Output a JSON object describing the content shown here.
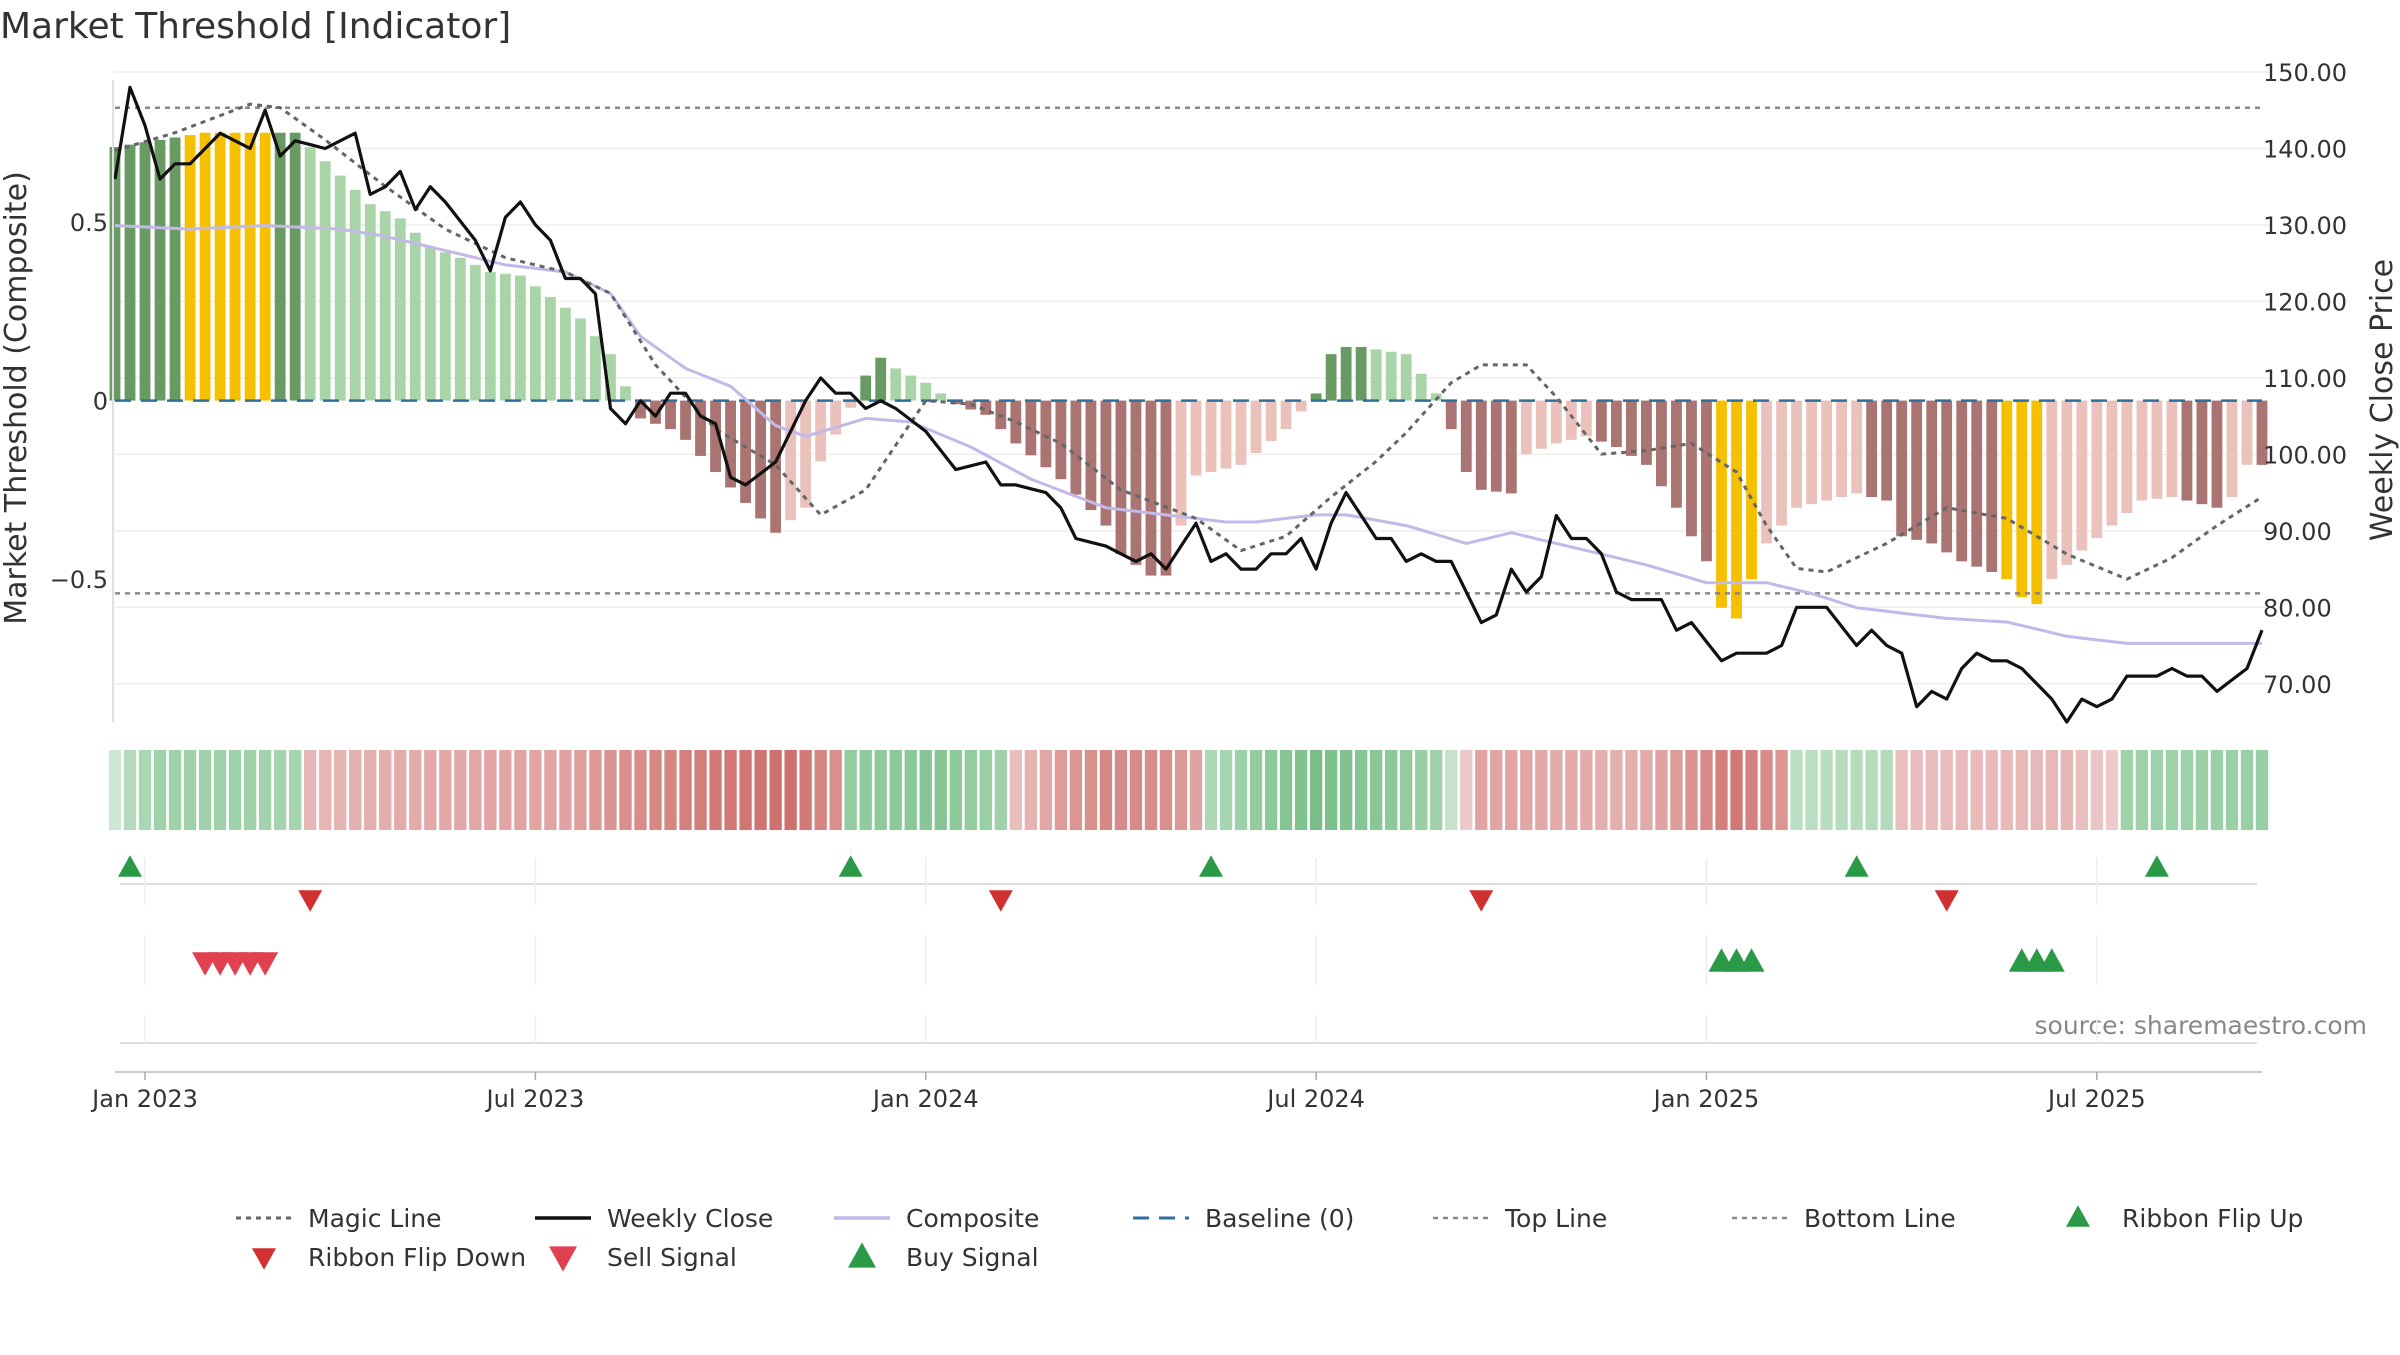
{
  "chart_data": {
    "type": "bar",
    "title": "Market Threshold [Indicator]",
    "ylabel": "Market Threshold (Composite)",
    "y2label": "Weekly Close Price",
    "source": "source: sharemaestro.com",
    "ylim": [
      -0.9,
      0.92
    ],
    "y2lim": [
      65,
      150
    ],
    "yticks": [
      {
        "v": 0.5,
        "label": "0.5"
      },
      {
        "v": 0,
        "label": "0"
      },
      {
        "v": -0.5,
        "label": "−0.5"
      }
    ],
    "y2ticks": [
      {
        "v": 150,
        "label": "150.00"
      },
      {
        "v": 140,
        "label": "140.00"
      },
      {
        "v": 130,
        "label": "130.00"
      },
      {
        "v": 120,
        "label": "120.00"
      },
      {
        "v": 110,
        "label": "110.00"
      },
      {
        "v": 100,
        "label": "100.00"
      },
      {
        "v": 90,
        "label": "90.00"
      },
      {
        "v": 80,
        "label": "80.00"
      },
      {
        "v": 70,
        "label": "70.00"
      }
    ],
    "xticks": [
      {
        "label": "Jan 2023",
        "week": 2
      },
      {
        "label": "Jul 2023",
        "week": 28
      },
      {
        "label": "Jan 2024",
        "week": 54
      },
      {
        "label": "Jul 2024",
        "week": 80
      },
      {
        "label": "Jan 2025",
        "week": 106
      },
      {
        "label": "Jul 2025",
        "week": 132
      }
    ],
    "top_line": 0.82,
    "bottom_line": -0.54,
    "composite_keys": [
      [
        0,
        0.49
      ],
      [
        5,
        0.48
      ],
      [
        10,
        0.49
      ],
      [
        15,
        0.48
      ],
      [
        18,
        0.46
      ],
      [
        22,
        0.42
      ],
      [
        26,
        0.38
      ],
      [
        30,
        0.36
      ],
      [
        33,
        0.3
      ],
      [
        35,
        0.18
      ],
      [
        38,
        0.09
      ],
      [
        41,
        0.04
      ],
      [
        44,
        -0.07
      ],
      [
        46,
        -0.1
      ],
      [
        50,
        -0.05
      ],
      [
        53,
        -0.06
      ],
      [
        57,
        -0.13
      ],
      [
        61,
        -0.22
      ],
      [
        66,
        -0.3
      ],
      [
        70,
        -0.32
      ],
      [
        74,
        -0.34
      ],
      [
        76,
        -0.34
      ],
      [
        80,
        -0.32
      ],
      [
        82,
        -0.32
      ],
      [
        86,
        -0.35
      ],
      [
        90,
        -0.4
      ],
      [
        93,
        -0.37
      ],
      [
        96,
        -0.4
      ],
      [
        99,
        -0.43
      ],
      [
        102,
        -0.46
      ],
      [
        106,
        -0.51
      ],
      [
        110,
        -0.51
      ],
      [
        113,
        -0.54
      ],
      [
        116,
        -0.58
      ],
      [
        122,
        -0.61
      ],
      [
        126,
        -0.62
      ],
      [
        130,
        -0.66
      ],
      [
        134,
        -0.68
      ],
      [
        138,
        -0.68
      ],
      [
        143,
        -0.68
      ]
    ],
    "magic_keys": [
      [
        0,
        0.7
      ],
      [
        4,
        0.75
      ],
      [
        9,
        0.83
      ],
      [
        11,
        0.82
      ],
      [
        14,
        0.73
      ],
      [
        18,
        0.6
      ],
      [
        22,
        0.48
      ],
      [
        26,
        0.4
      ],
      [
        30,
        0.36
      ],
      [
        33,
        0.3
      ],
      [
        36,
        0.1
      ],
      [
        40,
        -0.08
      ],
      [
        44,
        -0.18
      ],
      [
        47,
        -0.32
      ],
      [
        50,
        -0.25
      ],
      [
        54,
        0.0
      ],
      [
        57,
        -0.01
      ],
      [
        60,
        -0.06
      ],
      [
        63,
        -0.12
      ],
      [
        67,
        -0.25
      ],
      [
        72,
        -0.33
      ],
      [
        75,
        -0.42
      ],
      [
        78,
        -0.38
      ],
      [
        81,
        -0.27
      ],
      [
        84,
        -0.17
      ],
      [
        86,
        -0.09
      ],
      [
        89,
        0.05
      ],
      [
        91,
        0.1
      ],
      [
        94,
        0.1
      ],
      [
        96,
        0.01
      ],
      [
        99,
        -0.15
      ],
      [
        102,
        -0.14
      ],
      [
        105,
        -0.12
      ],
      [
        108,
        -0.2
      ],
      [
        110,
        -0.35
      ],
      [
        112,
        -0.47
      ],
      [
        114,
        -0.48
      ],
      [
        118,
        -0.4
      ],
      [
        122,
        -0.3
      ],
      [
        126,
        -0.33
      ],
      [
        130,
        -0.43
      ],
      [
        134,
        -0.5
      ],
      [
        137,
        -0.44
      ],
      [
        140,
        -0.35
      ],
      [
        143,
        -0.27
      ]
    ],
    "close_keys": [
      [
        0,
        136
      ],
      [
        1,
        148
      ],
      [
        2,
        143
      ],
      [
        3,
        136
      ],
      [
        4,
        138
      ],
      [
        5,
        138
      ],
      [
        7,
        142
      ],
      [
        9,
        140
      ],
      [
        10,
        145
      ],
      [
        11,
        139
      ],
      [
        12,
        141
      ],
      [
        14,
        140
      ],
      [
        16,
        142
      ],
      [
        17,
        134
      ],
      [
        18,
        135
      ],
      [
        19,
        137
      ],
      [
        20,
        132
      ],
      [
        21,
        135
      ],
      [
        22,
        133
      ],
      [
        24,
        128
      ],
      [
        25,
        124
      ],
      [
        26,
        131
      ],
      [
        27,
        133
      ],
      [
        28,
        130
      ],
      [
        29,
        128
      ],
      [
        30,
        123
      ],
      [
        31,
        123
      ],
      [
        32,
        121
      ],
      [
        33,
        106
      ],
      [
        34,
        104
      ],
      [
        35,
        107
      ],
      [
        36,
        105
      ],
      [
        37,
        108
      ],
      [
        38,
        108
      ],
      [
        39,
        105
      ],
      [
        40,
        104
      ],
      [
        41,
        97
      ],
      [
        42,
        96
      ],
      [
        44,
        99
      ],
      [
        45,
        103
      ],
      [
        46,
        107
      ],
      [
        47,
        110
      ],
      [
        48,
        108
      ],
      [
        49,
        108
      ],
      [
        50,
        106
      ],
      [
        51,
        107
      ],
      [
        52,
        106
      ],
      [
        54,
        103
      ],
      [
        56,
        98
      ],
      [
        58,
        99
      ],
      [
        59,
        96
      ],
      [
        60,
        96
      ],
      [
        62,
        95
      ],
      [
        63,
        93
      ],
      [
        64,
        89
      ],
      [
        66,
        88
      ],
      [
        67,
        87
      ],
      [
        68,
        86
      ],
      [
        69,
        87
      ],
      [
        70,
        85
      ],
      [
        71,
        88
      ],
      [
        72,
        91
      ],
      [
        73,
        86
      ],
      [
        74,
        87
      ],
      [
        75,
        85
      ],
      [
        76,
        85
      ],
      [
        77,
        87
      ],
      [
        78,
        87
      ],
      [
        79,
        89
      ],
      [
        80,
        85
      ],
      [
        81,
        91
      ],
      [
        82,
        95
      ],
      [
        83,
        92
      ],
      [
        84,
        89
      ],
      [
        85,
        89
      ],
      [
        86,
        86
      ],
      [
        87,
        87
      ],
      [
        88,
        86
      ],
      [
        89,
        86
      ],
      [
        90,
        82
      ],
      [
        91,
        78
      ],
      [
        92,
        79
      ],
      [
        93,
        85
      ],
      [
        94,
        82
      ],
      [
        95,
        84
      ],
      [
        96,
        92
      ],
      [
        97,
        89
      ],
      [
        98,
        89
      ],
      [
        99,
        87
      ],
      [
        100,
        82
      ],
      [
        101,
        81
      ],
      [
        102,
        81
      ],
      [
        103,
        81
      ],
      [
        104,
        77
      ],
      [
        105,
        78
      ],
      [
        107,
        73
      ],
      [
        108,
        74
      ],
      [
        109,
        74
      ],
      [
        110,
        74
      ],
      [
        111,
        75
      ],
      [
        112,
        80
      ],
      [
        113,
        80
      ],
      [
        114,
        80
      ],
      [
        116,
        75
      ],
      [
        117,
        77
      ],
      [
        118,
        75
      ],
      [
        119,
        74
      ],
      [
        120,
        67
      ],
      [
        121,
        69
      ],
      [
        122,
        68
      ],
      [
        123,
        72
      ],
      [
        124,
        74
      ],
      [
        125,
        73
      ],
      [
        126,
        73
      ],
      [
        127,
        72
      ],
      [
        128,
        70
      ],
      [
        129,
        68
      ],
      [
        130,
        65
      ],
      [
        131,
        68
      ],
      [
        132,
        67
      ],
      [
        133,
        68
      ],
      [
        134,
        71
      ],
      [
        135,
        71
      ],
      [
        136,
        71
      ],
      [
        137,
        72
      ],
      [
        138,
        71
      ],
      [
        139,
        71
      ],
      [
        140,
        69
      ],
      [
        142,
        72
      ],
      [
        143,
        77
      ]
    ],
    "bar_keys": [
      [
        0,
        0.71
      ],
      [
        6,
        0.75
      ],
      [
        12,
        0.75
      ],
      [
        14,
        0.67
      ],
      [
        17,
        0.55
      ],
      [
        19,
        0.51
      ],
      [
        21,
        0.43
      ],
      [
        23,
        0.4
      ],
      [
        25,
        0.36
      ],
      [
        27,
        0.35
      ],
      [
        31,
        0.23
      ],
      [
        33,
        0.13
      ],
      [
        34,
        0.04
      ],
      [
        35,
        -0.05
      ],
      [
        37,
        -0.08
      ],
      [
        38,
        -0.11
      ],
      [
        40,
        -0.2
      ],
      [
        43,
        -0.33
      ],
      [
        44,
        -0.37
      ],
      [
        46,
        -0.3
      ],
      [
        47,
        -0.17
      ],
      [
        49,
        -0.02
      ],
      [
        50,
        0.07
      ],
      [
        51,
        0.12
      ],
      [
        52,
        0.09
      ],
      [
        54,
        0.05
      ],
      [
        56,
        -0.01
      ],
      [
        58,
        -0.04
      ],
      [
        60,
        -0.12
      ],
      [
        63,
        -0.22
      ],
      [
        66,
        -0.35
      ],
      [
        67,
        -0.43
      ],
      [
        69,
        -0.49
      ],
      [
        70,
        -0.49
      ],
      [
        72,
        -0.21
      ],
      [
        75,
        -0.18
      ],
      [
        78,
        -0.08
      ],
      [
        79,
        -0.03
      ],
      [
        80,
        0.02
      ],
      [
        81,
        0.13
      ],
      [
        82,
        0.15
      ],
      [
        83,
        0.15
      ],
      [
        86,
        0.13
      ],
      [
        88,
        0.02
      ],
      [
        89,
        -0.08
      ],
      [
        90,
        -0.2
      ],
      [
        91,
        -0.25
      ],
      [
        93,
        -0.26
      ],
      [
        94,
        -0.15
      ],
      [
        96,
        -0.12
      ],
      [
        98,
        -0.1
      ],
      [
        100,
        -0.13
      ],
      [
        102,
        -0.18
      ],
      [
        104,
        -0.3
      ],
      [
        105,
        -0.38
      ],
      [
        106,
        -0.45
      ],
      [
        107,
        -0.58
      ],
      [
        108,
        -0.61
      ],
      [
        109,
        -0.5
      ],
      [
        110,
        -0.4
      ],
      [
        112,
        -0.3
      ],
      [
        114,
        -0.28
      ],
      [
        116,
        -0.26
      ],
      [
        118,
        -0.28
      ],
      [
        119,
        -0.38
      ],
      [
        121,
        -0.4
      ],
      [
        123,
        -0.45
      ],
      [
        125,
        -0.48
      ],
      [
        126,
        -0.5
      ],
      [
        127,
        -0.55
      ],
      [
        128,
        -0.57
      ],
      [
        129,
        -0.5
      ],
      [
        131,
        -0.42
      ],
      [
        133,
        -0.35
      ],
      [
        135,
        -0.28
      ],
      [
        137,
        -0.27
      ],
      [
        140,
        -0.3
      ],
      [
        141,
        -0.27
      ],
      [
        142,
        -0.18
      ]
    ],
    "yellow_weeks": [
      5,
      6,
      7,
      8,
      9,
      10,
      107,
      108,
      109,
      126,
      127,
      128
    ],
    "ribbon_keys": [
      [
        0,
        0.1
      ],
      [
        1,
        0.3
      ],
      [
        3,
        0.45
      ],
      [
        9,
        0.45
      ],
      [
        12,
        0.4
      ],
      [
        13,
        -0.25
      ],
      [
        20,
        -0.35
      ],
      [
        30,
        -0.4
      ],
      [
        34,
        -0.55
      ],
      [
        40,
        -0.7
      ],
      [
        45,
        -0.78
      ],
      [
        48,
        -0.55
      ],
      [
        49,
        0.55
      ],
      [
        55,
        0.65
      ],
      [
        59,
        0.45
      ],
      [
        60,
        -0.2
      ],
      [
        63,
        -0.45
      ],
      [
        66,
        -0.6
      ],
      [
        70,
        -0.55
      ],
      [
        72,
        -0.4
      ],
      [
        73,
        0.35
      ],
      [
        77,
        0.6
      ],
      [
        80,
        0.75
      ],
      [
        85,
        0.6
      ],
      [
        88,
        0.45
      ],
      [
        91,
        -0.4
      ],
      [
        96,
        -0.35
      ],
      [
        101,
        -0.3
      ],
      [
        104,
        -0.45
      ],
      [
        108,
        -0.72
      ],
      [
        111,
        -0.5
      ],
      [
        112,
        0.25
      ],
      [
        118,
        0.3
      ],
      [
        119,
        -0.2
      ],
      [
        130,
        -0.25
      ],
      [
        133,
        -0.1
      ],
      [
        134,
        0.45
      ],
      [
        143,
        0.5
      ]
    ],
    "ribbon_flip_up_weeks": [
      1,
      49,
      73,
      116,
      136
    ],
    "ribbon_flip_down_weeks": [
      13,
      59,
      91,
      122
    ],
    "sell_signal_weeks": [
      6,
      7,
      8,
      9,
      10
    ],
    "buy_signal_weeks": [
      107,
      108,
      109,
      127,
      128,
      129
    ],
    "colors": {
      "strong_green": "#6a9a64",
      "light_green": "#a9d4a8",
      "strong_red": "#a97471",
      "light_red": "#ebc1bc",
      "peak_yellow": "#f5c000",
      "close": "#111111",
      "composite": "#c2b9e8",
      "magic": "#666666",
      "baseline": "#2e6f9c",
      "threshold": "#888888",
      "buy": "#2b9a46",
      "flip_down": "#d03030",
      "sell": "#e04050"
    },
    "legend": [
      {
        "key": "magic",
        "label": "Magic Line",
        "row": 0,
        "col": 0
      },
      {
        "key": "close",
        "label": "Weekly Close",
        "row": 0,
        "col": 1
      },
      {
        "key": "composite",
        "label": "Composite",
        "row": 0,
        "col": 2
      },
      {
        "key": "baseline",
        "label": "Baseline (0)",
        "row": 0,
        "col": 3
      },
      {
        "key": "topline",
        "label": "Top Line",
        "row": 0,
        "col": 4
      },
      {
        "key": "bottomline",
        "label": "Bottom Line",
        "row": 0,
        "col": 5
      },
      {
        "key": "flipup",
        "label": "Ribbon Flip Up",
        "row": 0,
        "col": 6
      },
      {
        "key": "flipdown",
        "label": "Ribbon Flip Down",
        "row": 1,
        "col": 0
      },
      {
        "key": "sell",
        "label": "Sell Signal",
        "row": 1,
        "col": 1
      },
      {
        "key": "buy",
        "label": "Buy Signal",
        "row": 1,
        "col": 2
      }
    ]
  }
}
